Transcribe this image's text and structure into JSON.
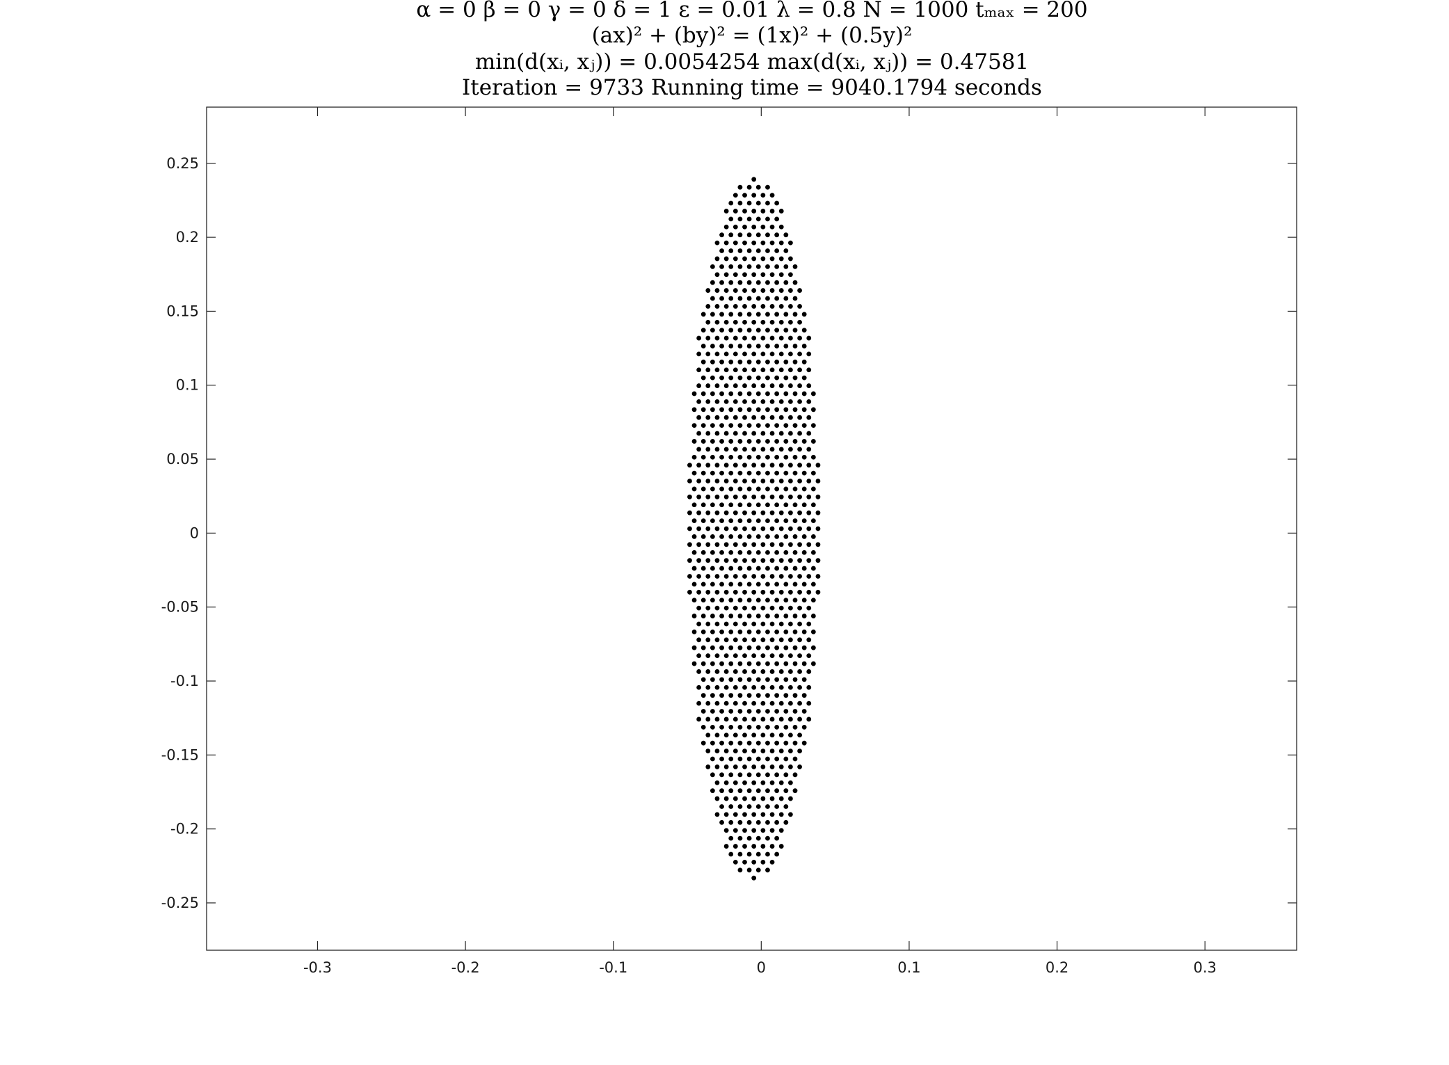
{
  "figure": {
    "title_lines": [
      "α = 0    β = 0    γ = 0    δ = 1    ε = 0.01    λ = 0.8    N = 1000    tₘₐₓ = 200",
      "(ax)² + (by)² = (1x)² + (0.5y)²",
      "min(d(xᵢ, xⱼ)) = 0.0054254     max(d(xᵢ, xⱼ)) = 0.47581",
      "Iteration = 9733    Running time = 9040.1794 seconds"
    ]
  },
  "chart_data": {
    "type": "scatter",
    "title": "α = 0 β = 0 γ = 0 δ = 1 ε = 0.01 λ = 0.8 N = 1000 tₘₐₓ = 200 / (ax)² + (by)² = (1x)² + (0.5y)² / min(d(xᵢ, xⱼ)) = 0.0054254 max(d(xᵢ, xⱼ)) = 0.47581 / Iteration = 9733 Running time = 9040.1794 seconds",
    "xlabel": "",
    "ylabel": "",
    "xlim": [
      -0.375,
      0.362
    ],
    "ylim": [
      -0.282,
      0.288
    ],
    "xticks": [
      -0.3,
      -0.2,
      -0.1,
      0,
      0.1,
      0.2,
      0.3
    ],
    "xtick_labels": [
      "-0.3",
      "-0.2",
      "-0.1",
      "0",
      "0.1",
      "0.2",
      "0.3"
    ],
    "yticks": [
      0.25,
      0.2,
      0.15,
      0.1,
      0.05,
      0,
      -0.05,
      -0.1,
      -0.15,
      -0.2,
      -0.25
    ],
    "ytick_labels": [
      "0.25",
      "0.2",
      "0.15",
      "0.1",
      "0.05",
      "0",
      "-0.05",
      "-0.1",
      "-0.15",
      "-0.2",
      "-0.25"
    ],
    "grid": false,
    "marker_color": "#000000",
    "series": [
      {
        "n_points": 1000,
        "distribution": "hexagonal packing filling an ellipse",
        "center": [
          -0.005,
          0.003
        ],
        "semi_axis_x": 0.0445,
        "semi_axis_y": 0.238
      }
    ]
  }
}
